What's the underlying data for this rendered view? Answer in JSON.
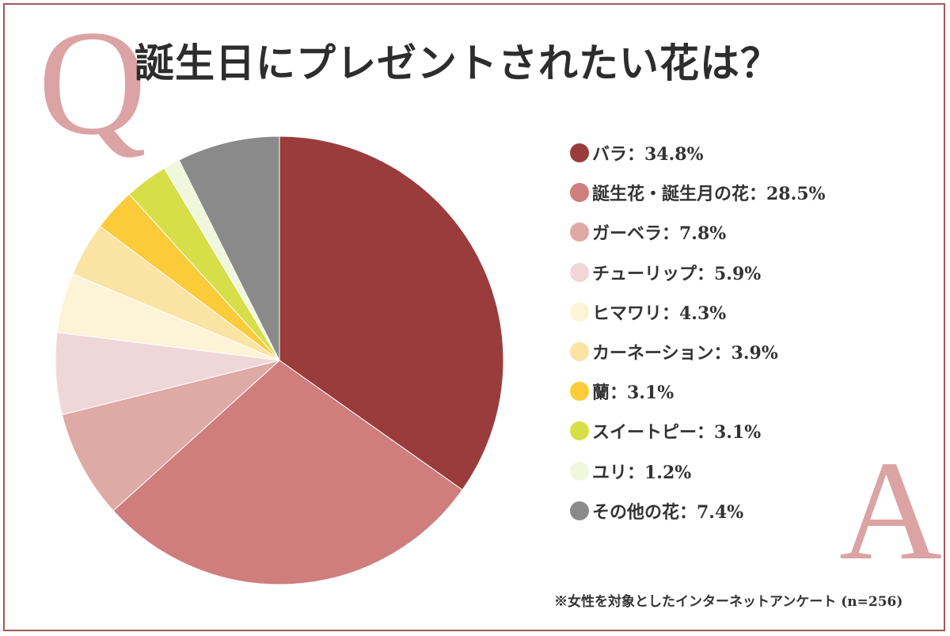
{
  "title": "誕生日にプレゼントされたい花は？",
  "q_mark": "Q",
  "a_mark": "A",
  "note": "※女性を対象としたインターネットアンケート (n=256)",
  "chart_data": {
    "type": "pie",
    "title": "誕生日にプレゼントされたい花は？",
    "start": "top",
    "direction": "clockwise",
    "legend_position": "right",
    "unit": "%",
    "slices": [
      {
        "label": "バラ",
        "value": 34.8,
        "display": "バラ：34.8%",
        "color": "#9a3c3c"
      },
      {
        "label": "誕生花・誕生月の花",
        "value": 28.5,
        "display": "誕生花・誕生月の花：28.5%",
        "color": "#cf7d7d"
      },
      {
        "label": "ガーベラ",
        "value": 7.8,
        "display": "ガーベラ：7.8%",
        "color": "#deaaa6"
      },
      {
        "label": "チューリップ",
        "value": 5.9,
        "display": "チューリップ：5.9%",
        "color": "#f0d7d7"
      },
      {
        "label": "ヒマワリ",
        "value": 4.3,
        "display": "ヒマワリ：4.3%",
        "color": "#fdf3d6"
      },
      {
        "label": "カーネーション",
        "value": 3.9,
        "display": "カーネーション：3.9%",
        "color": "#fbe3a4"
      },
      {
        "label": "蘭",
        "value": 3.1,
        "display": "蘭：3.1%",
        "color": "#fbcb3a"
      },
      {
        "label": "スイートピー",
        "value": 3.1,
        "display": "スイートピー：3.1%",
        "color": "#d6df48"
      },
      {
        "label": "ユリ",
        "value": 1.2,
        "display": "ユリ：1.2%",
        "color": "#f1f7dc"
      },
      {
        "label": "その他の花",
        "value": 7.4,
        "display": "その他の花：7.4%",
        "color": "#8a8a8a"
      }
    ]
  }
}
